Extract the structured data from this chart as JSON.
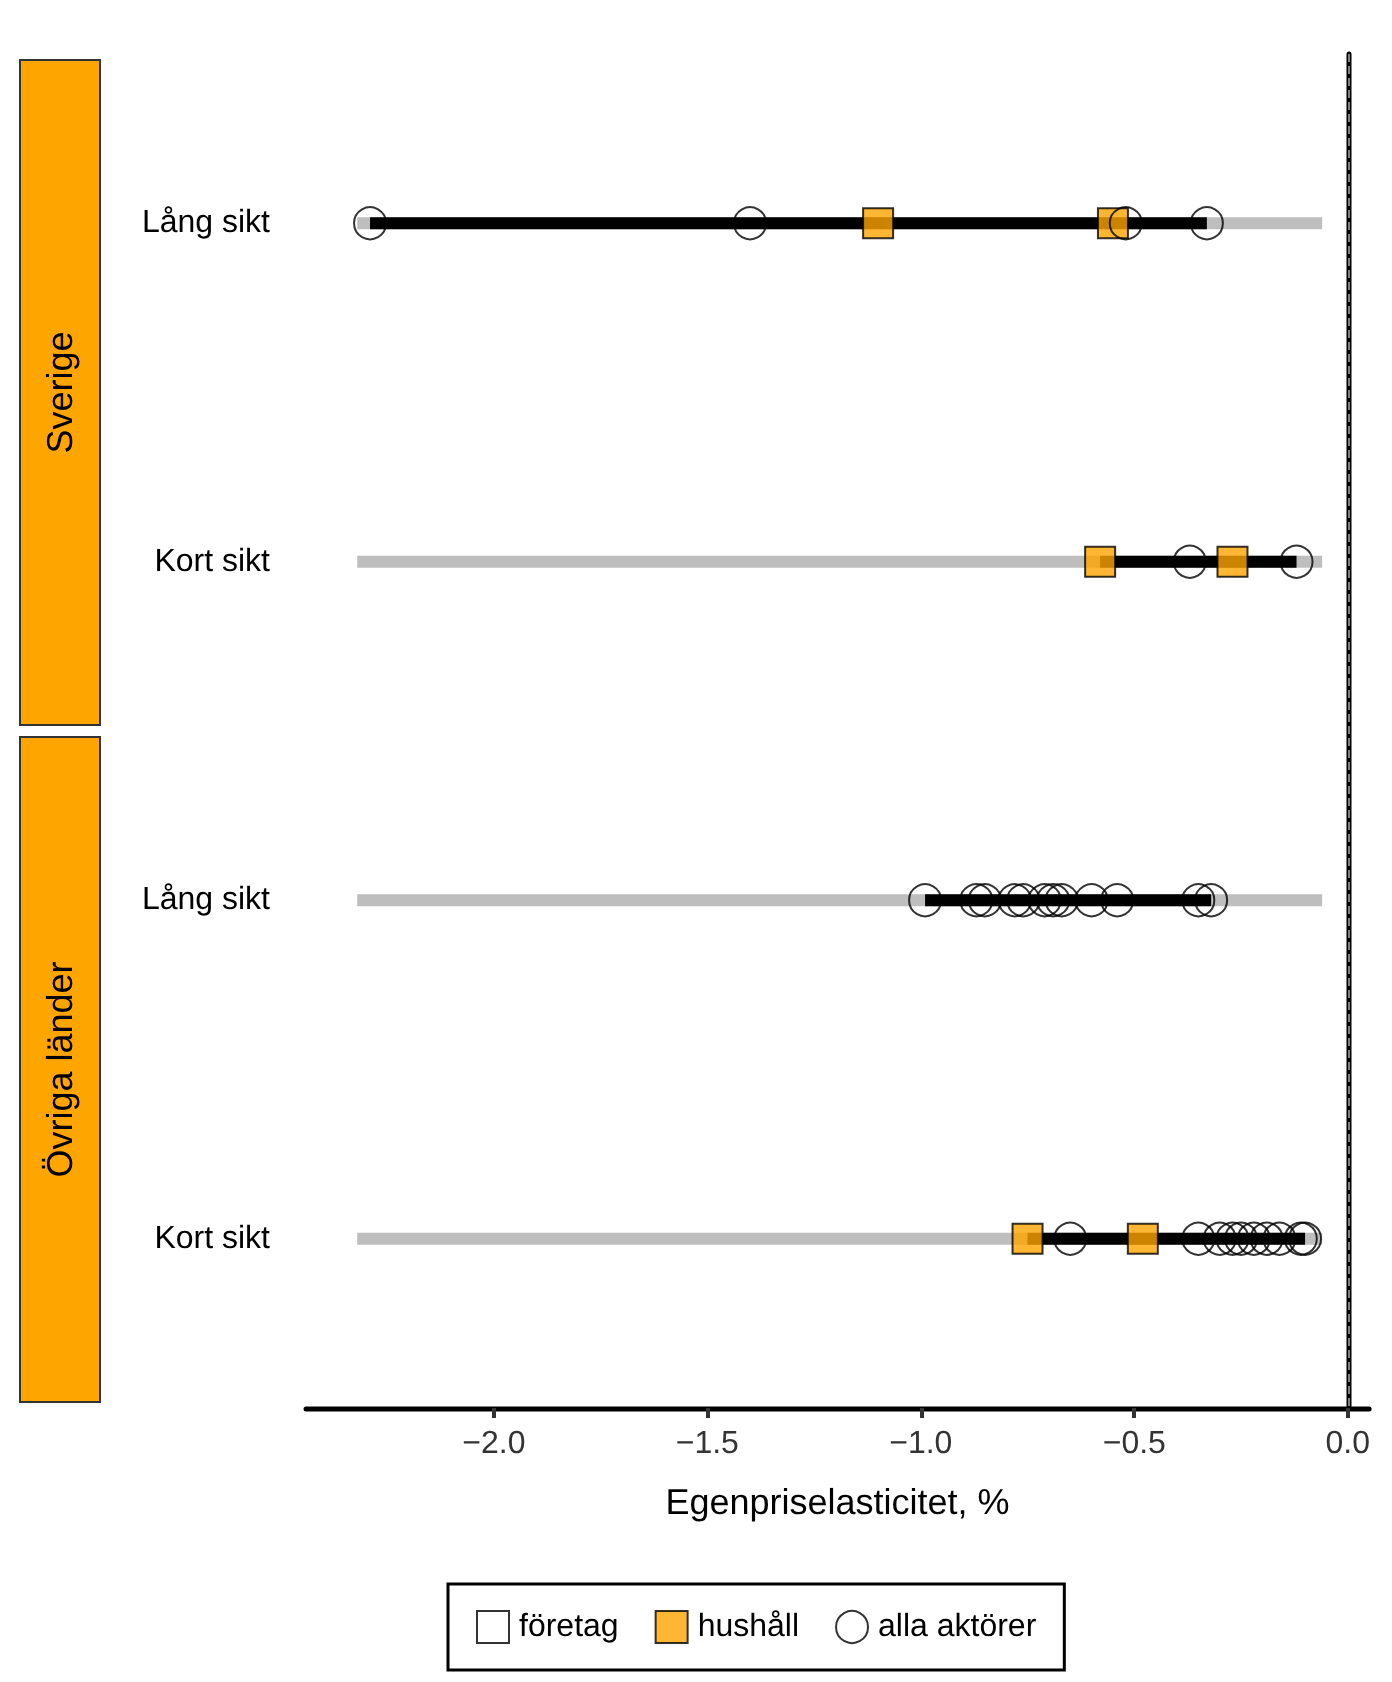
{
  "chart_data": {
    "type": "bar",
    "orientation": "horizontal",
    "xlabel": "Egenpriselasticitet, %",
    "categories": [
      "Lång sikt",
      "Kort sikt",
      "Lång sikt",
      "Kort sikt"
    ],
    "annotations": [
      "Sverige",
      "Övriga länder"
    ],
    "xlim": [
      -2.44,
      0.05
    ],
    "xticks": [
      {
        "value": -2,
        "label": "−2.0"
      },
      {
        "value": -1.5,
        "label": "−1.5"
      },
      {
        "value": -1,
        "label": "−1.0"
      },
      {
        "value": -0.5,
        "label": "−0.5"
      },
      {
        "value": 0,
        "label": "0.0"
      }
    ],
    "legend": "bottom",
    "grid": false,
    "ref_lines": [
      {
        "axis": "x",
        "value": 0,
        "color": "#808080",
        "line_style": "dashed"
      }
    ],
    "series": [
      {
        "color": "#bebebe",
        "base": [
          -2.32,
          -2.32,
          -2.32,
          -2.32
        ],
        "values": [
          2.26,
          2.26,
          2.26,
          2.26
        ]
      },
      {
        "color": "#000000",
        "base": [
          -2.29,
          -0.58,
          -0.99,
          -0.75
        ],
        "values": [
          1.96,
          0.46,
          0.67,
          0.65
        ]
      },
      {
        "type": "scatter",
        "name": "företag",
        "marker": "square",
        "color": "#ffffff",
        "values": [
          null,
          null,
          null,
          null
        ]
      },
      {
        "type": "scatter",
        "name": "hushåll",
        "marker": "square",
        "color": "#ffa500",
        "values": [
          -1.1,
          -0.58,
          null,
          -0.75
        ]
      },
      {
        "type": "scatter",
        "marker": "square",
        "color": "#ffa500",
        "values": [
          -0.55,
          -0.27,
          null,
          -0.48
        ]
      },
      {
        "type": "scatter",
        "name": "alla aktörer",
        "marker": "circle",
        "color": "#000000",
        "values": [
          -2.29,
          -0.37,
          -0.99,
          -0.65
        ]
      },
      {
        "type": "scatter",
        "marker": "circle",
        "color": "#000000",
        "values": [
          -1.4,
          -0.12,
          -0.87,
          -0.35
        ]
      },
      {
        "type": "scatter",
        "marker": "circle",
        "color": "#000000",
        "values": [
          -0.52,
          null,
          -0.85,
          -0.3
        ]
      },
      {
        "type": "scatter",
        "marker": "circle",
        "color": "#000000",
        "values": [
          -0.33,
          null,
          -0.78,
          -0.27
        ]
      },
      {
        "type": "scatter",
        "marker": "circle",
        "color": "#000000",
        "values": [
          null,
          null,
          -0.76,
          -0.25
        ]
      },
      {
        "type": "scatter",
        "marker": "circle",
        "color": "#000000",
        "values": [
          null,
          null,
          -0.71,
          -0.22
        ]
      },
      {
        "type": "scatter",
        "marker": "circle",
        "color": "#000000",
        "values": [
          null,
          null,
          -0.69,
          -0.19
        ]
      },
      {
        "type": "scatter",
        "marker": "circle",
        "color": "#000000",
        "values": [
          null,
          null,
          -0.67,
          -0.16
        ]
      },
      {
        "type": "scatter",
        "marker": "circle",
        "color": "#000000",
        "values": [
          null,
          null,
          -0.6,
          -0.11
        ]
      },
      {
        "type": "scatter",
        "marker": "circle",
        "color": "#000000",
        "values": [
          null,
          null,
          -0.54,
          -0.1
        ]
      },
      {
        "type": "scatter",
        "marker": "circle",
        "color": "#000000",
        "values": [
          null,
          null,
          -0.35,
          null
        ]
      },
      {
        "type": "scatter",
        "marker": "circle",
        "color": "#000000",
        "values": [
          null,
          null,
          -0.32,
          null
        ]
      }
    ]
  }
}
